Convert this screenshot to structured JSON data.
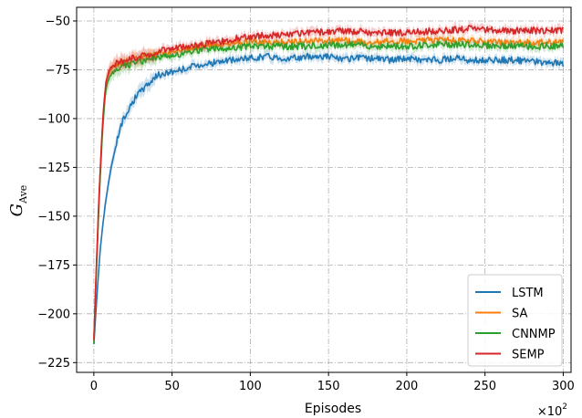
{
  "chart_data": {
    "type": "line",
    "xlabel": "Episodes",
    "ylabel_main": "G",
    "ylabel_sub": "Ave",
    "x_multiplier_base": "×10",
    "x_multiplier_exp": "2",
    "xlim": [
      -11,
      305
    ],
    "ylim": [
      -230,
      -43
    ],
    "xticks": [
      0,
      50,
      100,
      150,
      200,
      250,
      300
    ],
    "yticks": [
      -225,
      -200,
      -175,
      -150,
      -125,
      -100,
      -75,
      -50
    ],
    "grid": true,
    "legend_position": "lower-right",
    "series": [
      {
        "name": "LSTM",
        "color": "#1f77b4",
        "x": [
          0,
          2,
          4,
          6,
          8,
          10,
          13,
          16,
          20,
          25,
          30,
          35,
          40,
          50,
          60,
          70,
          80,
          90,
          100,
          110,
          120,
          130,
          140,
          150,
          160,
          170,
          180,
          190,
          200,
          210,
          220,
          230,
          240,
          250,
          260,
          270,
          280,
          290,
          300
        ],
        "values": [
          -216,
          -190,
          -168,
          -152,
          -140,
          -130,
          -117,
          -107,
          -98,
          -91,
          -86,
          -82,
          -78,
          -76,
          -74,
          -72,
          -71,
          -70,
          -69,
          -68,
          -69,
          -69,
          -68,
          -68,
          -70,
          -69,
          -69,
          -70,
          -69,
          -70,
          -70,
          -69,
          -70,
          -70,
          -70,
          -70,
          -71,
          -71,
          -72
        ]
      },
      {
        "name": "SA",
        "color": "#ff7f0e",
        "x": [
          0,
          1,
          2,
          3,
          4,
          5,
          6,
          7,
          8,
          10,
          12,
          15,
          20,
          25,
          30,
          40,
          50,
          60,
          70,
          80,
          90,
          100,
          120,
          140,
          160,
          180,
          200,
          220,
          240,
          260,
          280,
          300
        ],
        "values": [
          -213,
          -190,
          -168,
          -147,
          -128,
          -112,
          -98,
          -88,
          -81,
          -76,
          -74,
          -72,
          -71,
          -70,
          -69,
          -67,
          -66,
          -64,
          -63,
          -62,
          -61,
          -61,
          -61,
          -60,
          -60,
          -61,
          -60,
          -60,
          -60,
          -61,
          -61,
          -61
        ]
      },
      {
        "name": "CNNMP",
        "color": "#2ca02c",
        "x": [
          0,
          1,
          2,
          3,
          4,
          5,
          6,
          7,
          8,
          10,
          12,
          15,
          20,
          25,
          30,
          40,
          50,
          60,
          70,
          80,
          90,
          100,
          120,
          140,
          160,
          180,
          200,
          220,
          240,
          260,
          280,
          300
        ],
        "values": [
          -216,
          -192,
          -170,
          -150,
          -131,
          -115,
          -101,
          -91,
          -84,
          -79,
          -76,
          -74,
          -73,
          -72,
          -71,
          -69,
          -68,
          -66,
          -65,
          -64,
          -64,
          -63,
          -63,
          -63,
          -62,
          -63,
          -63,
          -62,
          -62,
          -63,
          -63,
          -63
        ]
      },
      {
        "name": "SEMP",
        "color": "#d62728",
        "x": [
          0,
          1,
          2,
          3,
          4,
          5,
          6,
          7,
          8,
          10,
          12,
          15,
          20,
          25,
          30,
          40,
          50,
          60,
          70,
          80,
          90,
          100,
          120,
          140,
          160,
          180,
          200,
          220,
          240,
          260,
          280,
          300
        ],
        "values": [
          -214,
          -190,
          -167,
          -146,
          -127,
          -111,
          -97,
          -87,
          -80,
          -75,
          -73,
          -71,
          -70,
          -69,
          -68,
          -66,
          -64,
          -63,
          -62,
          -61,
          -59,
          -58,
          -57,
          -56,
          -55,
          -56,
          -56,
          -55,
          -54,
          -55,
          -55,
          -55
        ]
      }
    ]
  }
}
